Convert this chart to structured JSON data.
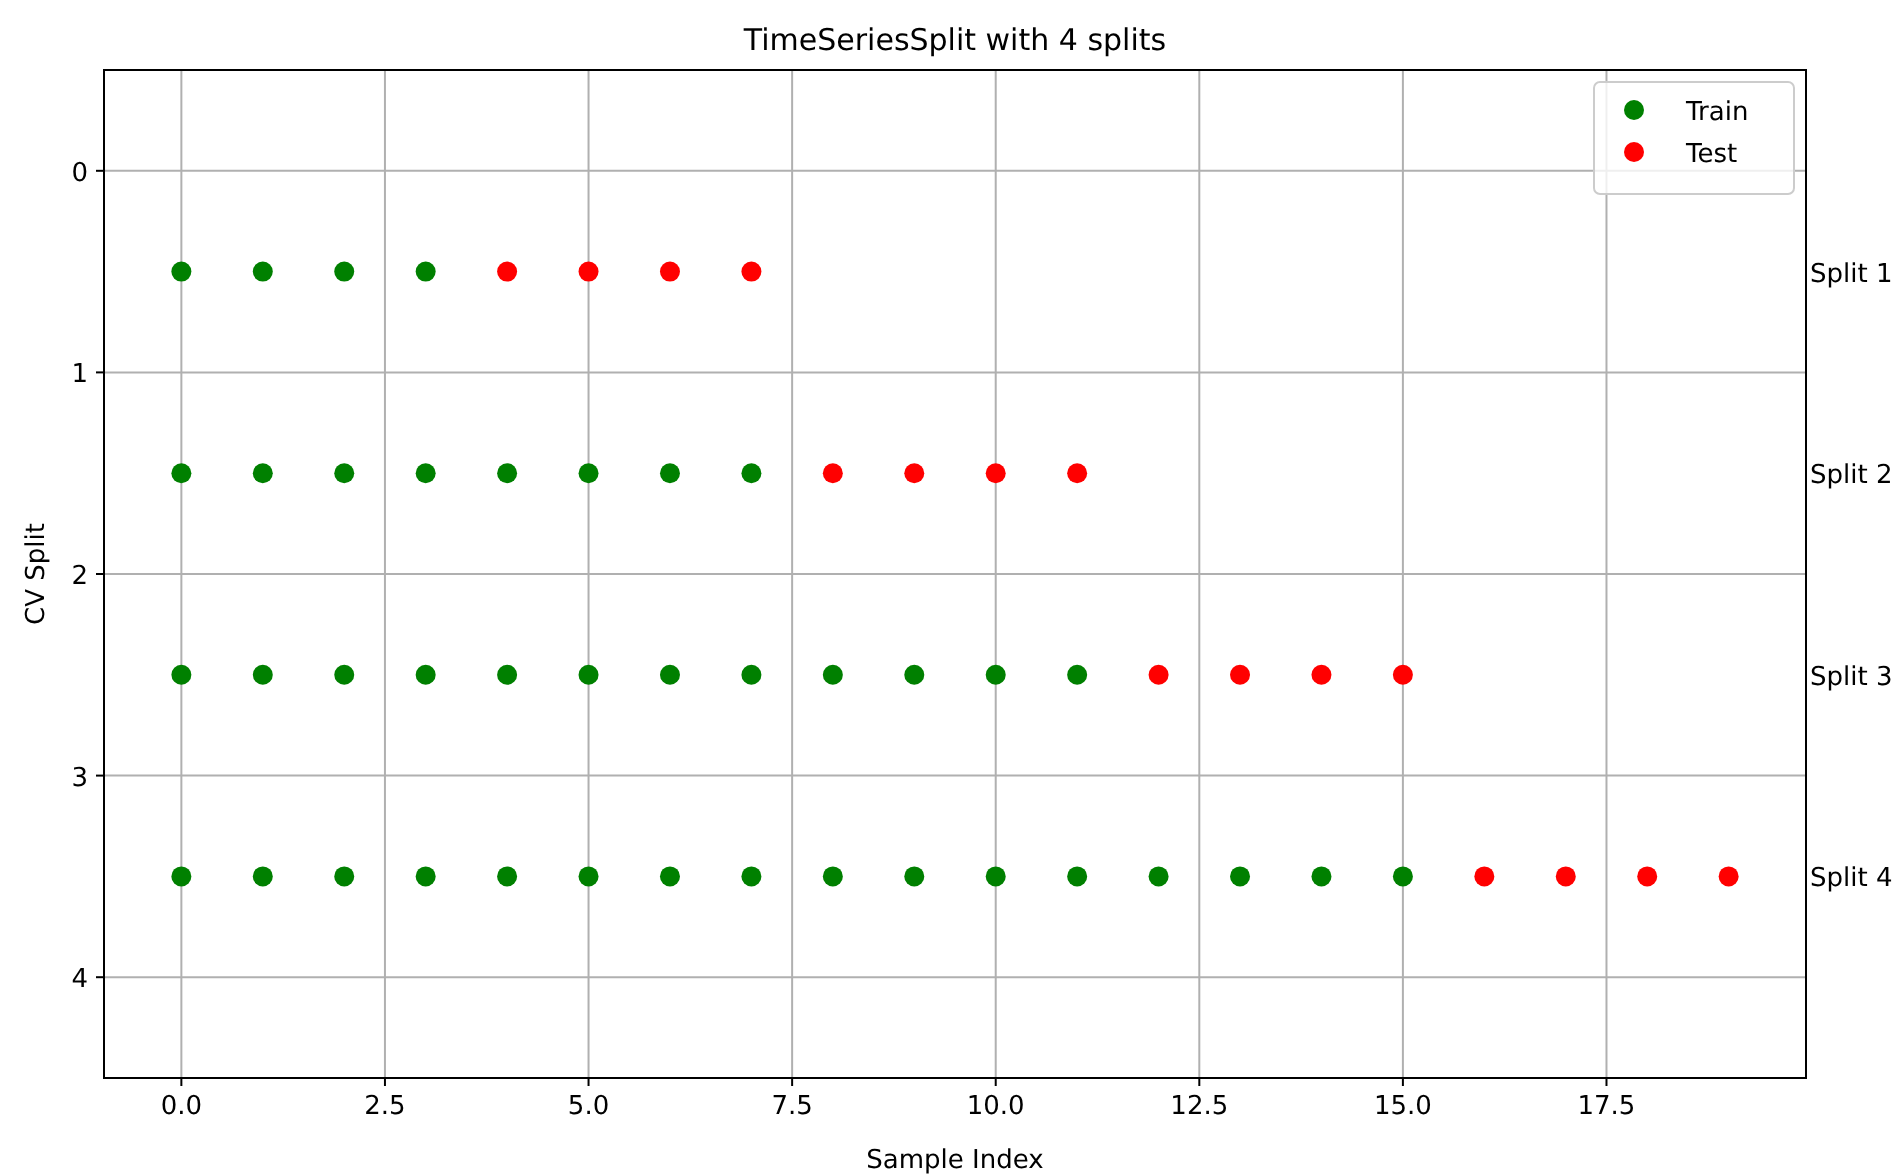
{
  "chart_data": {
    "type": "scatter",
    "title": "TimeSeriesSplit with 4 splits",
    "xlabel": "Sample Index",
    "ylabel": "CV Split",
    "xlim": [
      -0.95,
      19.95
    ],
    "xticks": [
      {
        "value": 0,
        "label": "0.0"
      },
      {
        "value": 2.5,
        "label": "2.5"
      },
      {
        "value": 5,
        "label": "5.0"
      },
      {
        "value": 7.5,
        "label": "7.5"
      },
      {
        "value": 10,
        "label": "10.0"
      },
      {
        "value": 12.5,
        "label": "12.5"
      },
      {
        "value": 15,
        "label": "15.0"
      },
      {
        "value": 17.5,
        "label": "17.5"
      }
    ],
    "ylim": [
      4.5,
      -0.5
    ],
    "yticks": [
      0,
      1,
      2,
      3,
      4
    ],
    "series": [
      {
        "name": "Train",
        "color": "#008000",
        "x": [
          0,
          1,
          2,
          3,
          0,
          1,
          2,
          3,
          4,
          5,
          6,
          7,
          0,
          1,
          2,
          3,
          4,
          5,
          6,
          7,
          8,
          9,
          10,
          11,
          0,
          1,
          2,
          3,
          4,
          5,
          6,
          7,
          8,
          9,
          10,
          11,
          12,
          13,
          14,
          15
        ],
        "values": [
          0.5,
          0.5,
          0.5,
          0.5,
          1.5,
          1.5,
          1.5,
          1.5,
          1.5,
          1.5,
          1.5,
          1.5,
          2.5,
          2.5,
          2.5,
          2.5,
          2.5,
          2.5,
          2.5,
          2.5,
          2.5,
          2.5,
          2.5,
          2.5,
          3.5,
          3.5,
          3.5,
          3.5,
          3.5,
          3.5,
          3.5,
          3.5,
          3.5,
          3.5,
          3.5,
          3.5,
          3.5,
          3.5,
          3.5,
          3.5
        ]
      },
      {
        "name": "Test",
        "color": "#ff0000",
        "x": [
          4,
          5,
          6,
          7,
          8,
          9,
          10,
          11,
          12,
          13,
          14,
          15,
          16,
          17,
          18,
          19
        ],
        "values": [
          0.5,
          0.5,
          0.5,
          0.5,
          1.5,
          1.5,
          1.5,
          1.5,
          2.5,
          2.5,
          2.5,
          2.5,
          3.5,
          3.5,
          3.5,
          3.5
        ]
      }
    ],
    "annotations": [
      "Split 1",
      "Split 2",
      "Split 3",
      "Split 4"
    ],
    "grid": true,
    "legend": "top right",
    "marker": "circle"
  }
}
